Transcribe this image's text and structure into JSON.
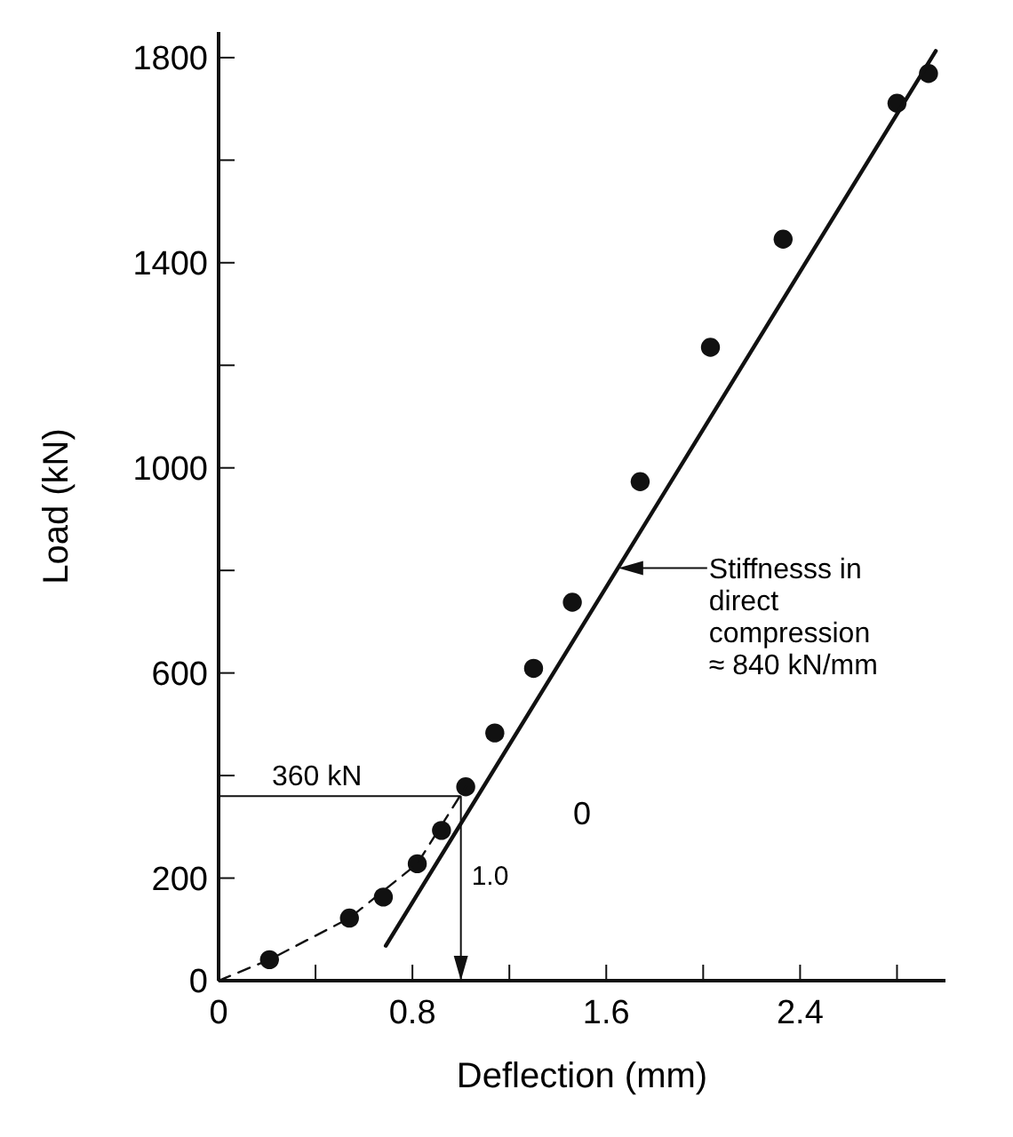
{
  "chart_data": {
    "type": "scatter",
    "xlabel": "Deflection (mm)",
    "ylabel": "Load (kN)",
    "xlim": [
      0,
      3.0
    ],
    "ylim": [
      0,
      1850
    ],
    "xticks": [
      0,
      {
        "value": 0.4,
        "label": null
      },
      0.8,
      {
        "value": 1.2,
        "label": null
      },
      1.6,
      {
        "value": 2.0,
        "label": null
      },
      2.4,
      {
        "value": 2.8,
        "label": null
      }
    ],
    "yticks": [
      0,
      200,
      {
        "value": 400,
        "label": null
      },
      600,
      {
        "value": 800,
        "label": null
      },
      1000,
      {
        "value": 1200,
        "label": null
      },
      1400,
      {
        "value": 1600,
        "label": null
      },
      1800
    ],
    "grid": false,
    "series": [
      {
        "color": "#111111",
        "marker": "circle",
        "x": [
          0.21,
          0.54,
          0.68,
          0.82,
          0.92,
          1.02,
          1.14,
          1.3,
          1.46,
          1.74,
          2.03,
          2.33,
          2.8,
          2.93
        ],
        "values": [
          41,
          122,
          163,
          228,
          293,
          378,
          483,
          609,
          738,
          973,
          1235,
          1446,
          1711,
          1769
        ]
      },
      {
        "type": "line",
        "color": "#111111",
        "line_style": "dashed",
        "marker": "none",
        "x": [
          0,
          0.21,
          0.54,
          0.82,
          1.02
        ],
        "values": [
          0,
          41,
          122,
          228,
          378
        ]
      },
      {
        "type": "line",
        "color": "#111111",
        "line_style": "solid",
        "marker": "none",
        "x": [
          0.69,
          2.96
        ],
        "values": [
          68,
          1813
        ]
      }
    ],
    "ref_lines": [
      {
        "axis": "y",
        "value": 360,
        "label": "360 kN",
        "color": "#111111"
      },
      {
        "axis": "x",
        "value": 1.0,
        "label": "1.0",
        "color": "#111111"
      }
    ],
    "annotations": [
      "Stiffnesss in\ndirect\ncompression\n≈ 840 kN/mm",
      "0"
    ]
  }
}
